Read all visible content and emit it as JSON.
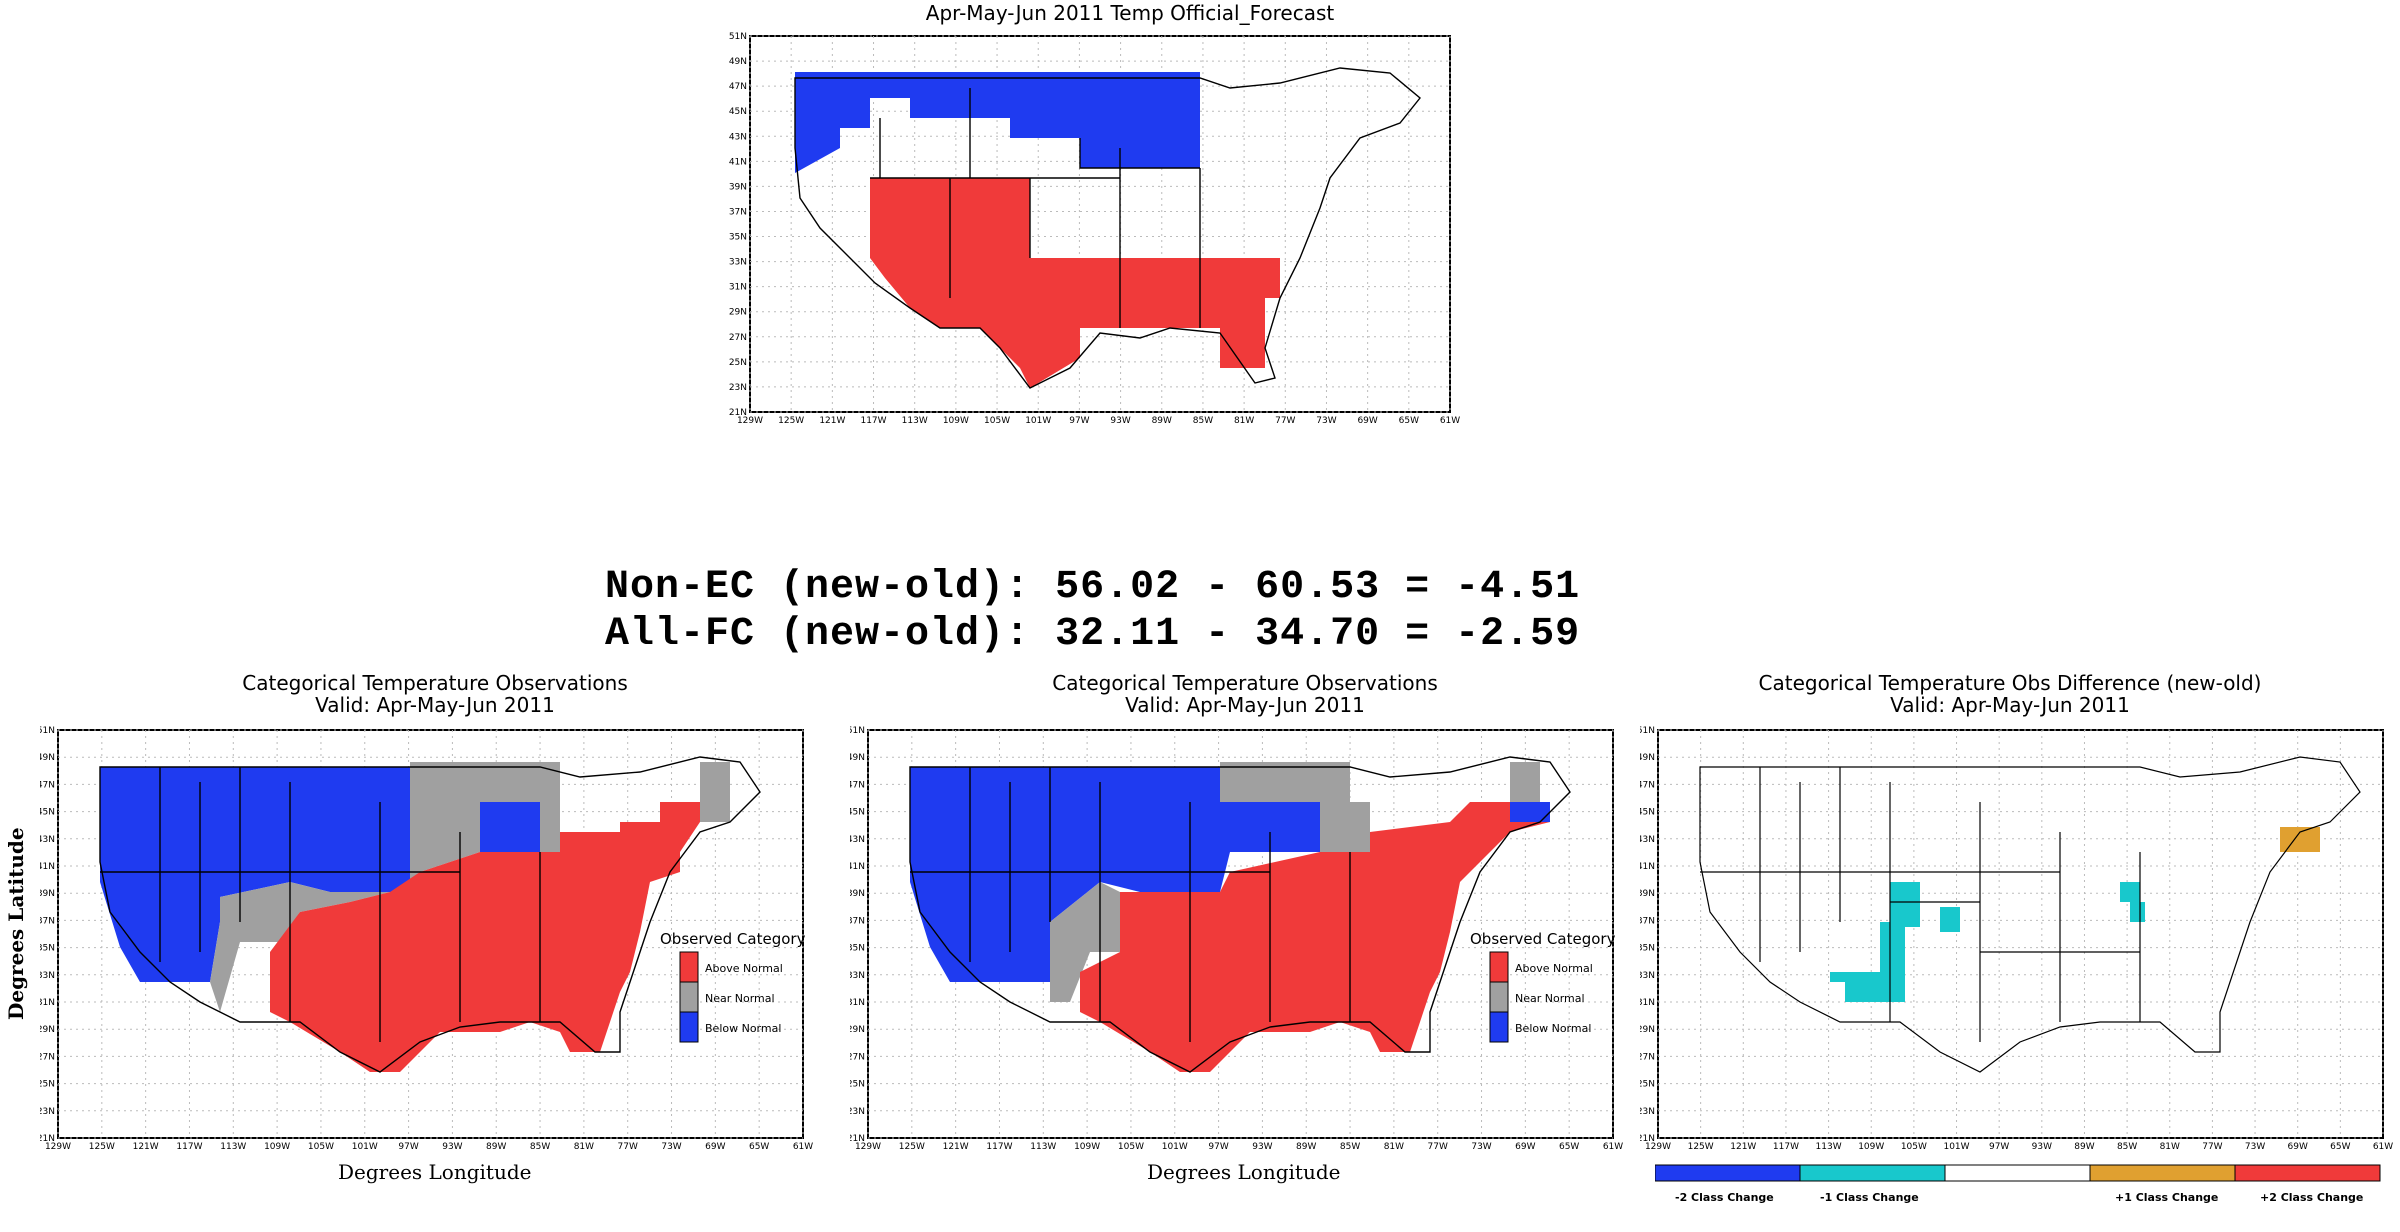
{
  "top_map": {
    "title": "Apr-May-Jun 2011 Temp Official_Forecast",
    "lat_ticks": [
      "51N",
      "49N",
      "47N",
      "45N",
      "43N",
      "41N",
      "39N",
      "37N",
      "35N",
      "33N",
      "31N",
      "29N",
      "27N",
      "25N",
      "23N",
      "21N"
    ],
    "lon_ticks": [
      "129W",
      "125W",
      "121W",
      "117W",
      "113W",
      "109W",
      "105W",
      "101W",
      "97W",
      "93W",
      "89W",
      "85W",
      "81W",
      "77W",
      "73W",
      "69W",
      "65W",
      "61W"
    ]
  },
  "scores": {
    "line1": "Non-EC (new-old): 56.02 - 60.53 = -4.51",
    "line2": "All-FC (new-old): 32.11 - 34.70 = -2.59"
  },
  "obs_old": {
    "title": "Categorical Temperature Observations",
    "subtitle": "Valid: Apr-May-Jun 2011",
    "xlabel": "Degrees Longitude",
    "ylabel": "Degrees Latitude",
    "legend_title": "Observed Category",
    "legend_items": [
      "Above Normal",
      "Near Normal",
      "Below Normal"
    ]
  },
  "obs_new": {
    "title": "Categorical Temperature Observations",
    "subtitle": "Valid: Apr-May-Jun 2011",
    "xlabel": "Degrees Longitude",
    "legend_title": "Observed Category",
    "legend_items": [
      "Above Normal",
      "Near Normal",
      "Below Normal"
    ]
  },
  "diff_map": {
    "title": "Categorical Temperature Obs Difference (new-old)",
    "subtitle": "Valid: Apr-May-Jun 2011",
    "colorbar_labels": [
      "-2 Class Change",
      "-1 Class Change",
      "+1 Class Change",
      "+2 Class Change"
    ]
  },
  "colors": {
    "above": "#f03a3a",
    "near": "#a0a0a0",
    "below": "#1f3bf0",
    "minus1": "#18c8cc",
    "plus1": "#e0a030",
    "border": "#000000"
  }
}
